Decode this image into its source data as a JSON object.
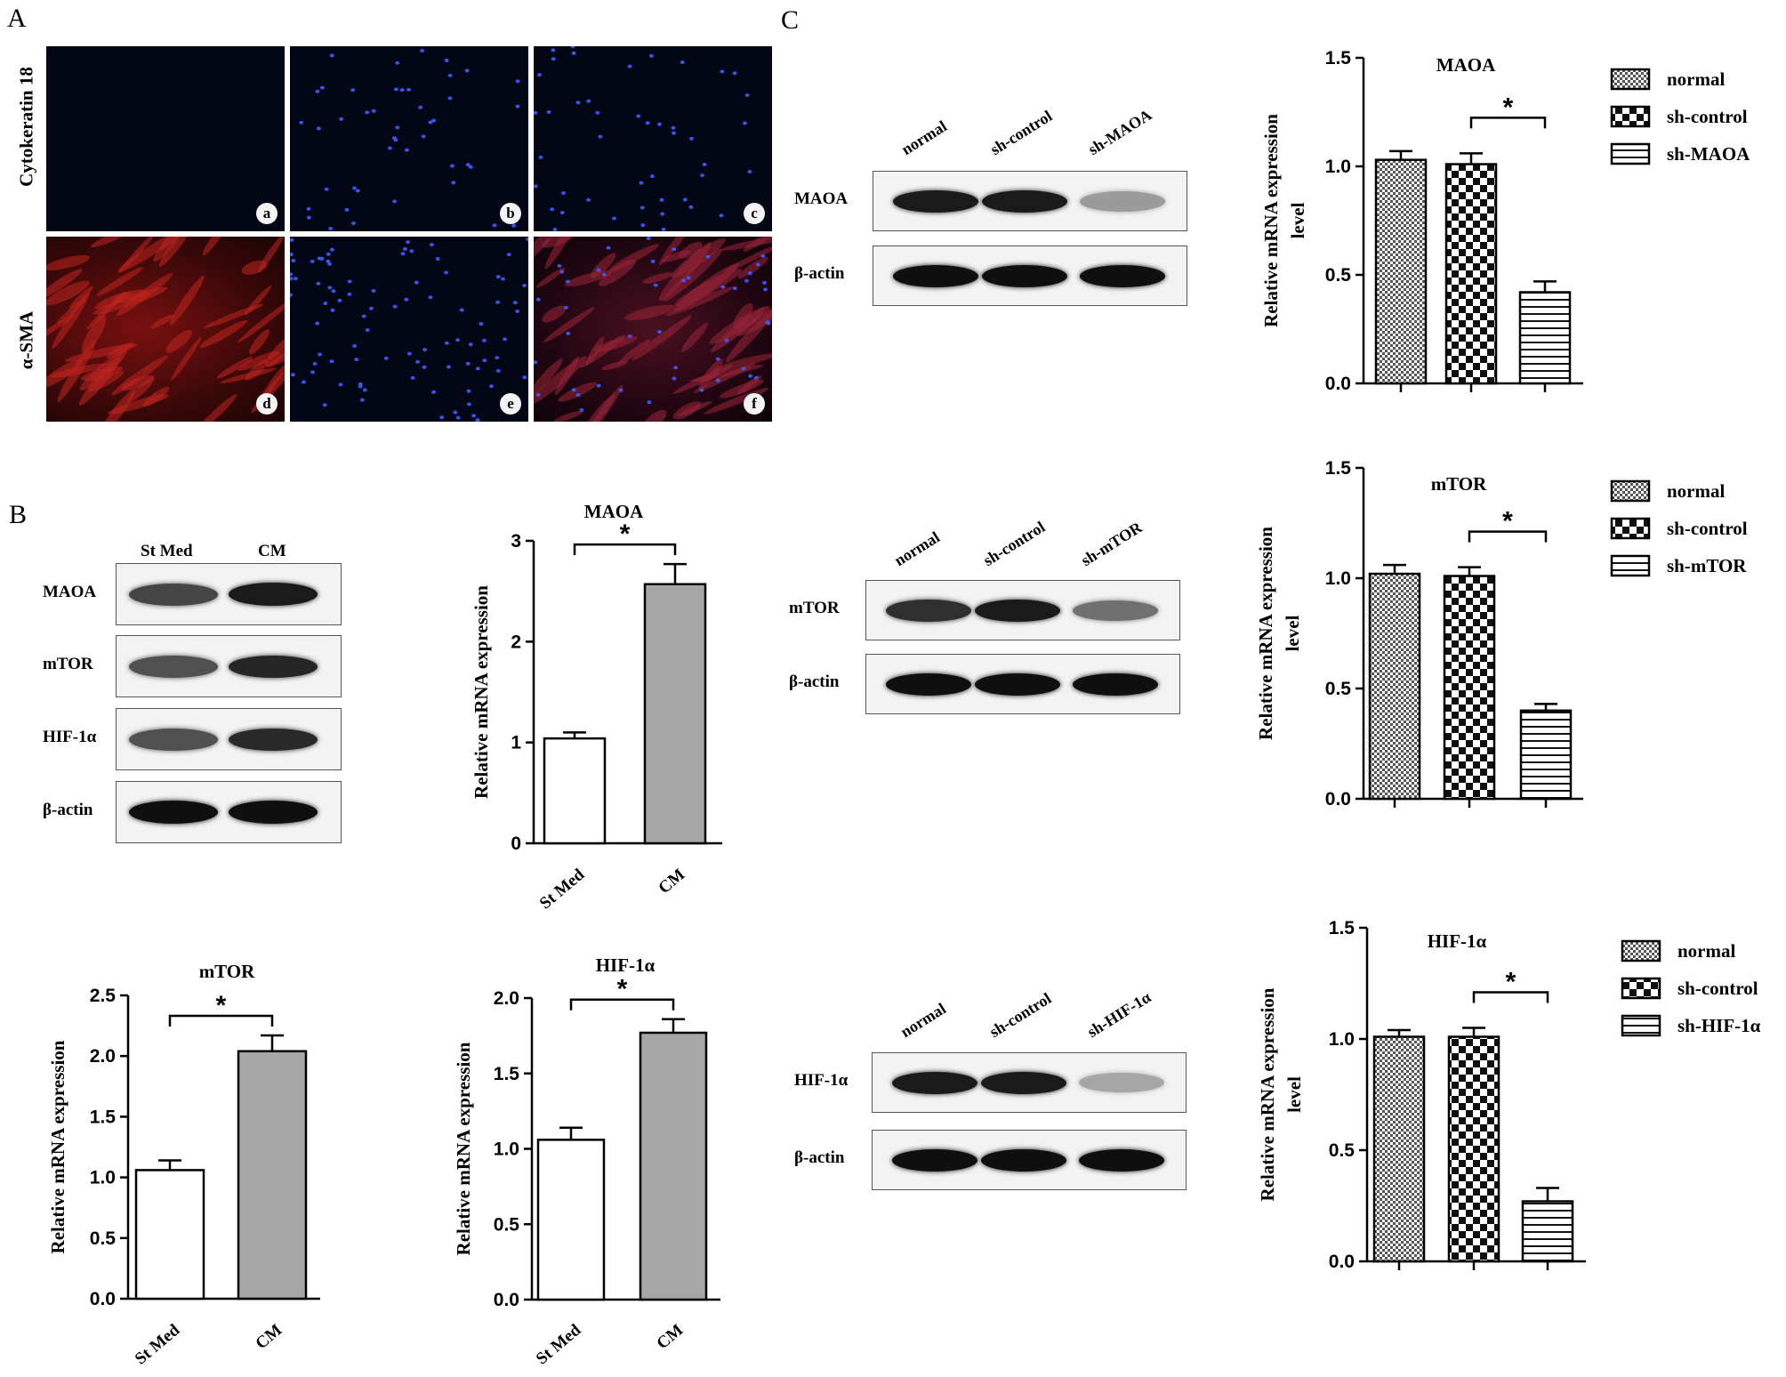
{
  "panels": {
    "a": "A",
    "b": "B",
    "c": "C"
  },
  "panelA": {
    "row_labels": [
      "Cytokeratin 18",
      "α-SMA"
    ],
    "tiles": [
      {
        "label": "a",
        "stain": "none"
      },
      {
        "label": "b",
        "stain": "blue"
      },
      {
        "label": "c",
        "stain": "blue"
      },
      {
        "label": "d",
        "stain": "red"
      },
      {
        "label": "e",
        "stain": "blue"
      },
      {
        "label": "f",
        "stain": "merge"
      }
    ]
  },
  "panelB": {
    "blot": {
      "columns": [
        "St Med",
        "CM"
      ],
      "rows": [
        {
          "label": "MAOA",
          "intensity": [
            0.75,
            0.95
          ]
        },
        {
          "label": "mTOR",
          "intensity": [
            0.7,
            0.9
          ]
        },
        {
          "label": "HIF-1α",
          "intensity": [
            0.7,
            0.88
          ]
        },
        {
          "label": "β-actin",
          "intensity": [
            1.0,
            1.0
          ]
        }
      ]
    }
  },
  "panelC": {
    "blots": [
      {
        "lanes": [
          "normal",
          "sh-control",
          "sh-MAOA"
        ],
        "rows": [
          {
            "label": "MAOA",
            "intensity": [
              0.95,
              0.95,
              0.35
            ]
          },
          {
            "label": "β-actin",
            "intensity": [
              1.0,
              1.0,
              1.0
            ]
          }
        ]
      },
      {
        "lanes": [
          "normal",
          "sh-control",
          "sh-mTOR"
        ],
        "rows": [
          {
            "label": "mTOR",
            "intensity": [
              0.85,
              0.95,
              0.55
            ]
          },
          {
            "label": "β-actin",
            "intensity": [
              1.0,
              1.0,
              1.0
            ]
          }
        ]
      },
      {
        "lanes": [
          "normal",
          "sh-control",
          "sh-HIF-1α"
        ],
        "rows": [
          {
            "label": "HIF-1α",
            "intensity": [
              0.95,
              0.95,
              0.3
            ]
          },
          {
            "label": "β-actin",
            "intensity": [
              1.0,
              1.0,
              1.0
            ]
          }
        ]
      }
    ]
  },
  "chart_data": [
    {
      "id": "B-MAOA",
      "type": "bar",
      "title": "MAOA",
      "ylabel": "Relative mRNA expression",
      "categories": [
        "St Med",
        "CM"
      ],
      "values": [
        1.04,
        2.57
      ],
      "errors": [
        0.06,
        0.2
      ],
      "ylim": [
        0,
        3
      ],
      "yticks": [
        "0",
        "1",
        "2",
        "3"
      ],
      "significance": "*"
    },
    {
      "id": "B-mTOR",
      "type": "bar",
      "title": "mTOR",
      "ylabel": "Relative mRNA expression",
      "categories": [
        "St Med",
        "CM"
      ],
      "values": [
        1.06,
        2.04
      ],
      "errors": [
        0.08,
        0.13
      ],
      "ylim": [
        0,
        2.5
      ],
      "yticks": [
        "0.0",
        "0.5",
        "1.0",
        "1.5",
        "2.0",
        "2.5"
      ],
      "significance": "*"
    },
    {
      "id": "B-HIF",
      "type": "bar",
      "title": "HIF-1α",
      "ylabel": "Relative mRNA expression",
      "categories": [
        "St Med",
        "CM"
      ],
      "values": [
        1.06,
        1.77
      ],
      "errors": [
        0.08,
        0.09
      ],
      "ylim": [
        0,
        2.0
      ],
      "yticks": [
        "0.0",
        "0.5",
        "1.0",
        "1.5",
        "2.0"
      ],
      "significance": "*"
    },
    {
      "id": "C-MAOA",
      "type": "bar",
      "title": "MAOA",
      "ylabel": [
        "Relative mRNA expression",
        "level"
      ],
      "categories": [
        "normal",
        "sh-control",
        "sh-MAOA"
      ],
      "values": [
        1.03,
        1.01,
        0.42
      ],
      "errors": [
        0.04,
        0.05,
        0.05
      ],
      "ylim": [
        0,
        1.5
      ],
      "yticks": [
        "0.0",
        "0.5",
        "1.0",
        "1.5"
      ],
      "significance": "*"
    },
    {
      "id": "C-mTOR",
      "type": "bar",
      "title": "mTOR",
      "ylabel": [
        "Relative mRNA expression",
        "level"
      ],
      "categories": [
        "normal",
        "sh-control",
        "sh-mTOR"
      ],
      "values": [
        1.02,
        1.01,
        0.4
      ],
      "errors": [
        0.04,
        0.04,
        0.03
      ],
      "ylim": [
        0,
        1.5
      ],
      "yticks": [
        "0.0",
        "0.5",
        "1.0",
        "1.5"
      ],
      "significance": "*"
    },
    {
      "id": "C-HIF",
      "type": "bar",
      "title": "HIF-1α",
      "ylabel": [
        "Relative mRNA expression",
        "level"
      ],
      "categories": [
        "normal",
        "sh-control",
        "sh-HIF-1α"
      ],
      "values": [
        1.01,
        1.01,
        0.27
      ],
      "errors": [
        0.03,
        0.04,
        0.06
      ],
      "ylim": [
        0,
        1.5
      ],
      "yticks": [
        "0.0",
        "0.5",
        "1.0",
        "1.5"
      ],
      "significance": "*"
    }
  ]
}
